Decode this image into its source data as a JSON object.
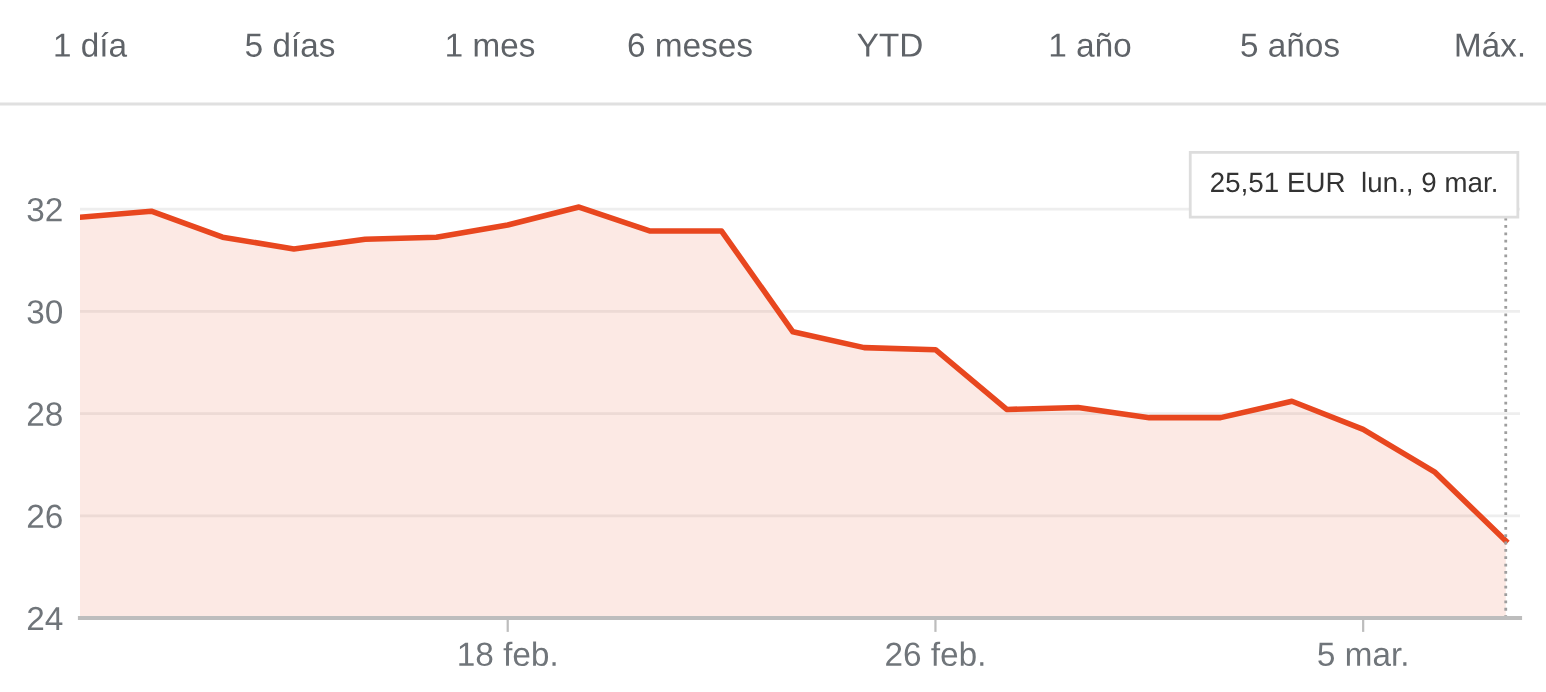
{
  "chart_data": {
    "type": "area",
    "categories": [
      null,
      null,
      null,
      null,
      null,
      null,
      "18 feb.",
      null,
      null,
      null,
      null,
      null,
      "26 feb.",
      null,
      null,
      null,
      null,
      null,
      "5 mar.",
      null,
      null
    ],
    "series": [
      {
        "color": "#e8471f",
        "values": [
          31.84,
          31.96,
          31.45,
          31.22,
          31.41,
          31.45,
          31.69,
          32.04,
          31.57,
          31.57,
          29.6,
          29.29,
          29.25,
          28.08,
          28.12,
          27.92,
          27.92,
          28.24,
          27.69,
          26.86,
          25.51
        ]
      }
    ],
    "ylim": [
      24,
      33
    ],
    "yticks": [
      24,
      26,
      28,
      30,
      32
    ],
    "grid": "y",
    "annotations": [
      "25,51 EUR  lun., 9 mar.",
      "1 día",
      "5 días",
      "1 mes",
      "6 meses",
      "YTD",
      "1 año",
      "5 años",
      "Máx."
    ]
  }
}
